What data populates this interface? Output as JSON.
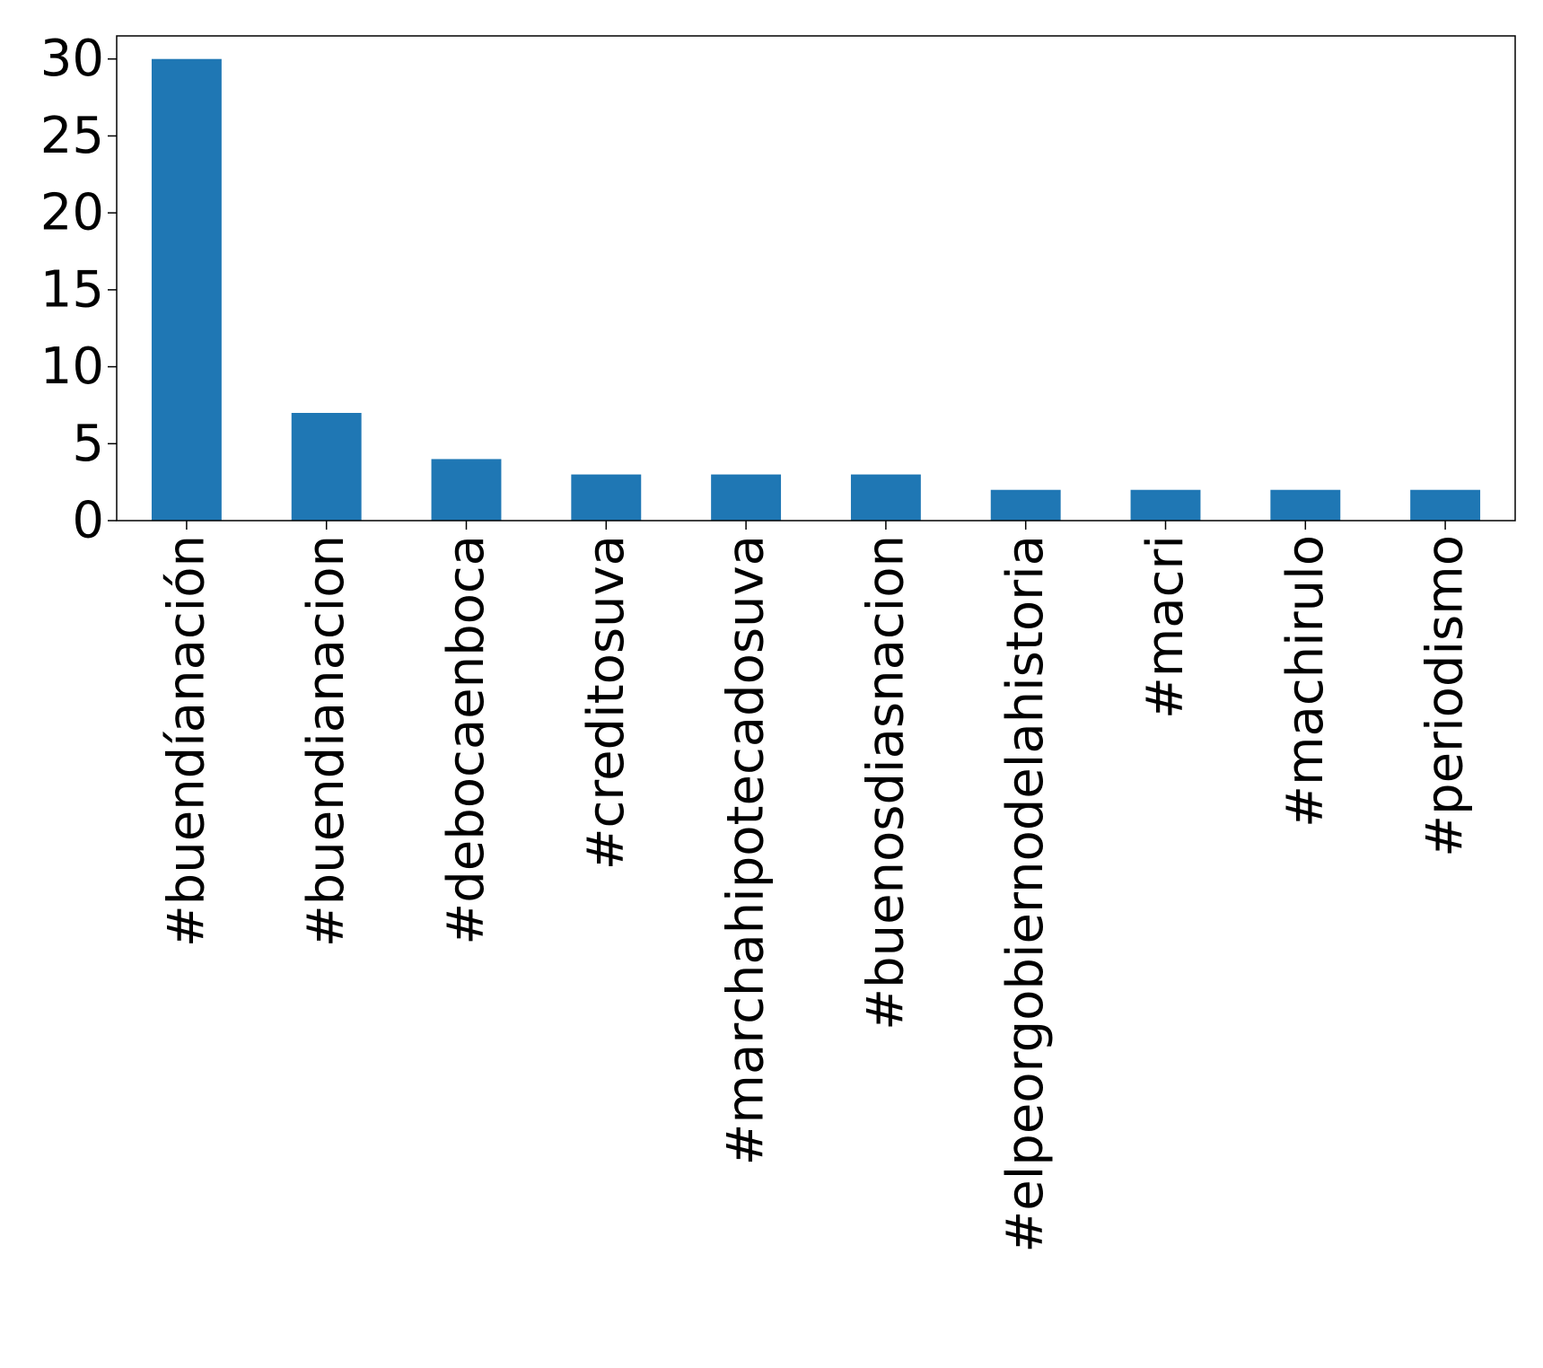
{
  "chart_data": {
    "type": "bar",
    "title": "",
    "xlabel": "",
    "ylabel": "",
    "categories": [
      "#buendíanación",
      "#buendianacion",
      "#debocaenboca",
      "#creditosuva",
      "#marchahipotecadosuva",
      "#buenosdiasnacion",
      "#elpeorgobiernodelahistoria",
      "#macri",
      "#machirulo",
      "#periodismo"
    ],
    "values": [
      30,
      7,
      4,
      3,
      3,
      3,
      2,
      2,
      2,
      2
    ],
    "ylim": [
      0,
      31.5
    ],
    "yticks": [
      0,
      5,
      10,
      15,
      20,
      25,
      30
    ],
    "grid": false,
    "legend": false,
    "colors": {
      "bar": "#1f77b4",
      "axis": "#000000",
      "background": "#ffffff"
    }
  }
}
